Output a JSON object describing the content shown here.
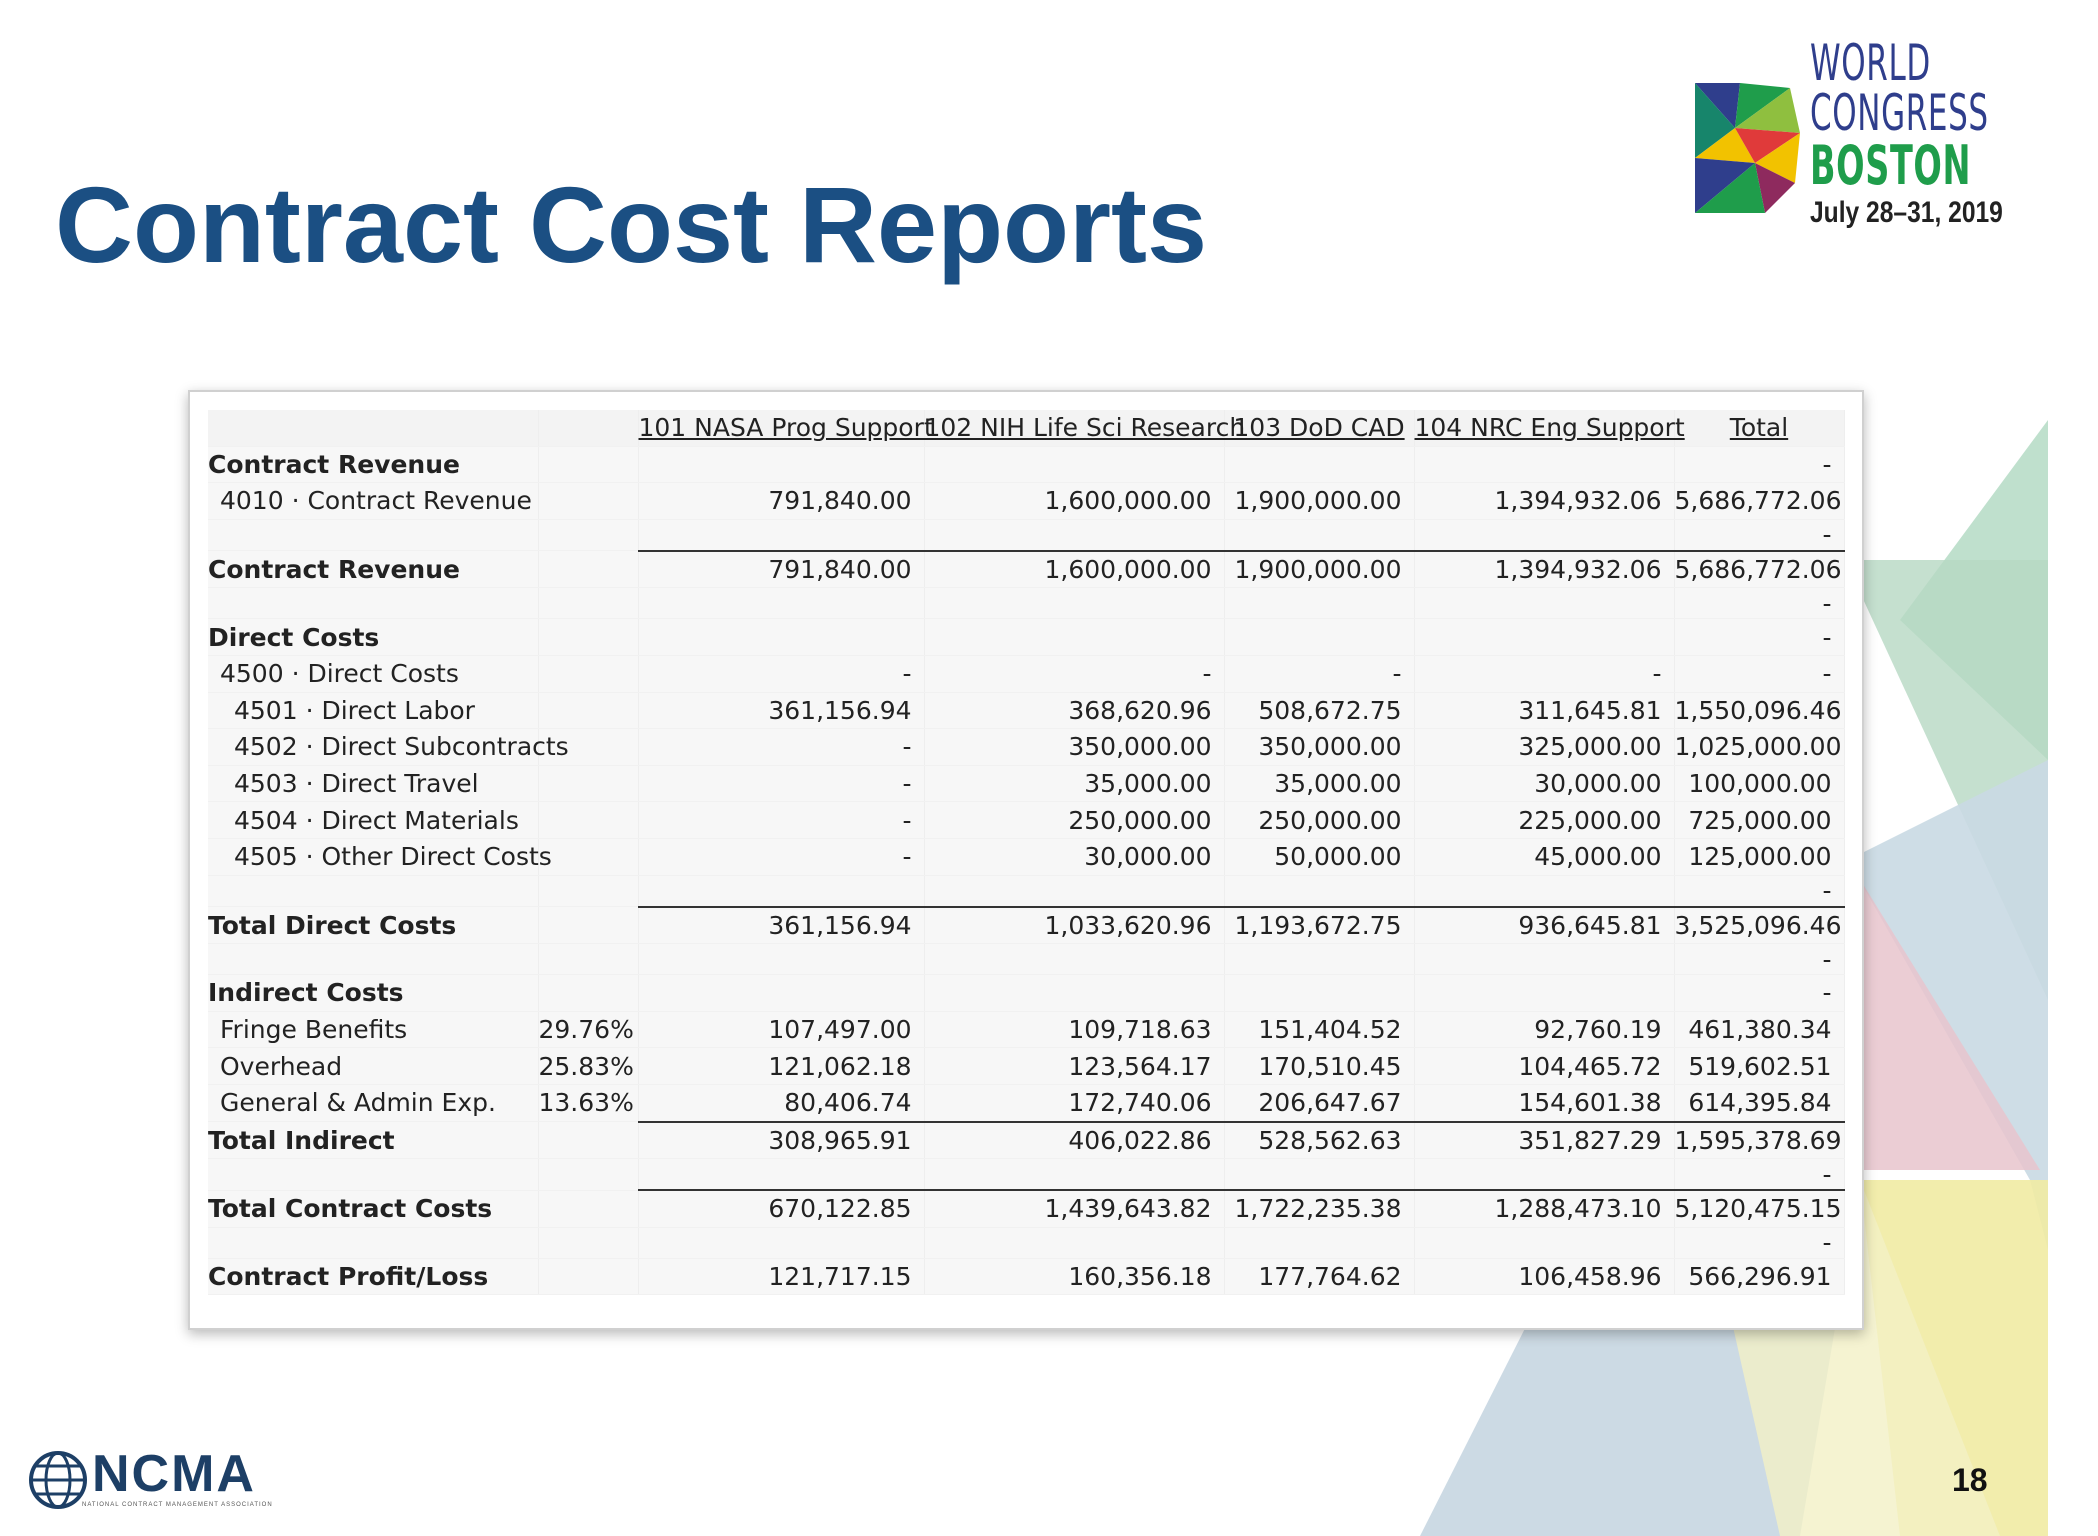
{
  "slide": {
    "title": "Contract Cost Reports",
    "page_number": "18"
  },
  "event_logo": {
    "line1": "WORLD",
    "line2": "CONGRESS",
    "line3": "BOSTON",
    "date": "July 28–31, 2019"
  },
  "footer_logo": {
    "name": "NCMA",
    "tagline": "NATIONAL CONTRACT MANAGEMENT ASSOCIATION"
  },
  "report": {
    "columns": [
      "101 NASA Prog Support",
      "102 NIH Life Sci Research",
      "103 DoD CAD",
      "104 NRC Eng Support",
      "Total"
    ],
    "rows": [
      {
        "label": "Contract Revenue",
        "style": "bold",
        "values": [
          "",
          "",
          "",
          "",
          "-"
        ]
      },
      {
        "label": "4010 · Contract Revenue",
        "style": "i1",
        "values": [
          "791,840.00",
          "1,600,000.00",
          "1,900,000.00",
          "1,394,932.06",
          "5,686,772.06"
        ]
      },
      {
        "label": "",
        "style": "gap",
        "values": [
          "",
          "",
          "",
          "",
          "-"
        ]
      },
      {
        "label": "Contract Revenue",
        "style": "bold rule",
        "values": [
          "791,840.00",
          "1,600,000.00",
          "1,900,000.00",
          "1,394,932.06",
          "5,686,772.06"
        ]
      },
      {
        "label": "",
        "style": "gap",
        "values": [
          "",
          "",
          "",
          "",
          "-"
        ]
      },
      {
        "label": "Direct Costs",
        "style": "bold",
        "values": [
          "",
          "",
          "",
          "",
          "-"
        ]
      },
      {
        "label": "4500 · Direct Costs",
        "style": "i1",
        "values": [
          "-",
          "-",
          "-",
          "-",
          "-"
        ]
      },
      {
        "label": "4501 · Direct Labor",
        "style": "i2",
        "values": [
          "361,156.94",
          "368,620.96",
          "508,672.75",
          "311,645.81",
          "1,550,096.46"
        ]
      },
      {
        "label": "4502 · Direct Subcontracts",
        "style": "i2",
        "values": [
          "-",
          "350,000.00",
          "350,000.00",
          "325,000.00",
          "1,025,000.00"
        ]
      },
      {
        "label": "4503 · Direct Travel",
        "style": "i2",
        "values": [
          "-",
          "35,000.00",
          "35,000.00",
          "30,000.00",
          "100,000.00"
        ]
      },
      {
        "label": "4504 · Direct Materials",
        "style": "i2",
        "values": [
          "-",
          "250,000.00",
          "250,000.00",
          "225,000.00",
          "725,000.00"
        ]
      },
      {
        "label": "4505 · Other Direct Costs",
        "style": "i2",
        "values": [
          "-",
          "30,000.00",
          "50,000.00",
          "45,000.00",
          "125,000.00"
        ]
      },
      {
        "label": "",
        "style": "gap",
        "values": [
          "",
          "",
          "",
          "",
          "-"
        ]
      },
      {
        "label": "Total Direct Costs",
        "style": "bold rule",
        "values": [
          "361,156.94",
          "1,033,620.96",
          "1,193,672.75",
          "936,645.81",
          "3,525,096.46"
        ]
      },
      {
        "label": "",
        "style": "gap",
        "values": [
          "",
          "",
          "",
          "",
          "-"
        ]
      },
      {
        "label": "Indirect Costs",
        "style": "bold",
        "values": [
          "",
          "",
          "",
          "",
          "-"
        ]
      },
      {
        "label": "Fringe Benefits",
        "style": "i1",
        "rate": "29.76%",
        "values": [
          "107,497.00",
          "109,718.63",
          "151,404.52",
          "92,760.19",
          "461,380.34"
        ]
      },
      {
        "label": "Overhead",
        "style": "i1",
        "rate": "25.83%",
        "values": [
          "121,062.18",
          "123,564.17",
          "170,510.45",
          "104,465.72",
          "519,602.51"
        ]
      },
      {
        "label": "General & Admin Exp.",
        "style": "i1",
        "rate": "13.63%",
        "values": [
          "80,406.74",
          "172,740.06",
          "206,647.67",
          "154,601.38",
          "614,395.84"
        ]
      },
      {
        "label": "Total Indirect",
        "style": "bold rule",
        "values": [
          "308,965.91",
          "406,022.86",
          "528,562.63",
          "351,827.29",
          "1,595,378.69"
        ]
      },
      {
        "label": "",
        "style": "gap",
        "values": [
          "",
          "",
          "",
          "",
          "-"
        ]
      },
      {
        "label": "Total Contract Costs",
        "style": "bold rule",
        "values": [
          "670,122.85",
          "1,439,643.82",
          "1,722,235.38",
          "1,288,473.10",
          "5,120,475.15"
        ]
      },
      {
        "label": "",
        "style": "gap",
        "values": [
          "",
          "",
          "",
          "",
          "-"
        ]
      },
      {
        "label": "Contract Profit/Loss",
        "style": "bold",
        "values": [
          "121,717.15",
          "160,356.18",
          "177,764.62",
          "106,458.96",
          "566,296.91"
        ]
      }
    ]
  },
  "colors": {
    "title": "#1b4f83",
    "bg_triangles": [
      "#a9d3bb",
      "#c9d9e3",
      "#e5c2cb",
      "#f0eba6",
      "#b7c9d5"
    ]
  }
}
